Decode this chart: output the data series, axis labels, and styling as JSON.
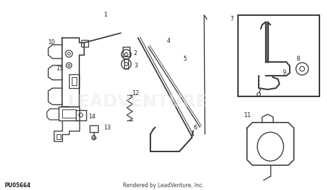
{
  "bg_color": "#ffffff",
  "bottom_left_text": "PU05664",
  "bottom_center_text": "Rendered by LeadVenture, Inc.",
  "watermark_text": "LEADVENTURE",
  "line_color": "#3a3a3a",
  "watermark_color": "#e8e8e8",
  "fig_width": 4.74,
  "fig_height": 2.76,
  "dpi": 100,
  "labels": [
    [
      "1",
      153,
      22
    ],
    [
      "2",
      196,
      78
    ],
    [
      "3",
      197,
      95
    ],
    [
      "4",
      244,
      60
    ],
    [
      "5",
      268,
      85
    ],
    [
      "6",
      283,
      185
    ],
    [
      "7",
      336,
      28
    ],
    [
      "8",
      432,
      85
    ],
    [
      "9",
      412,
      105
    ],
    [
      "10",
      74,
      62
    ],
    [
      "11",
      358,
      168
    ],
    [
      "12",
      196,
      135
    ],
    [
      "13",
      155,
      185
    ],
    [
      "14",
      133,
      170
    ],
    [
      "15",
      86,
      100
    ]
  ]
}
